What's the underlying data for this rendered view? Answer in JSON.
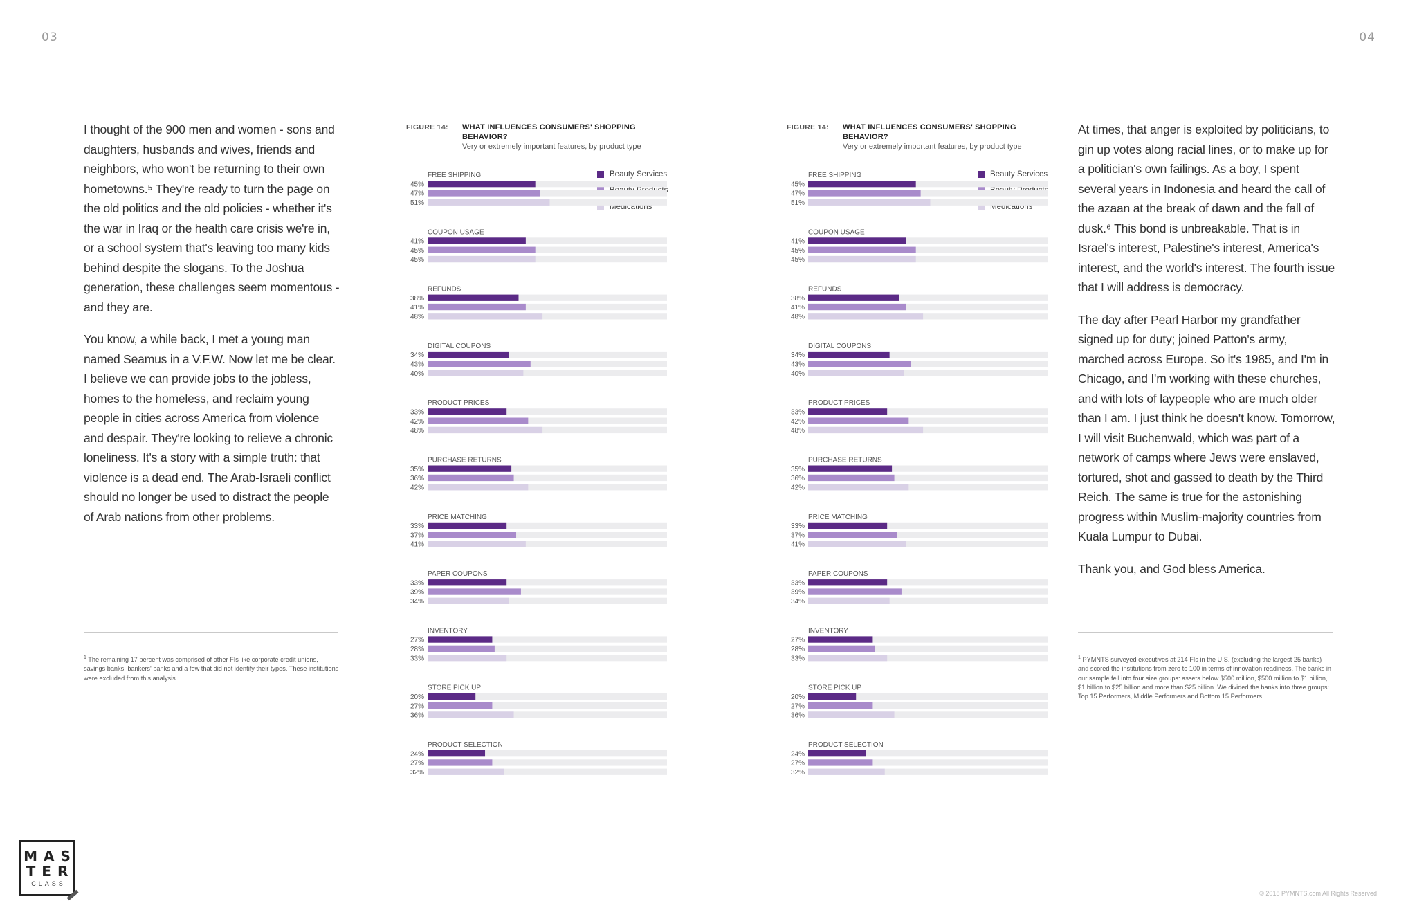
{
  "pages": {
    "left_number": "03",
    "right_number": "04"
  },
  "left_column": {
    "paragraphs": [
      "I thought of the 900 men and women - sons and daughters, husbands and wives, friends and neighbors, who won't be returning to their own hometowns.⁵ They're ready to turn the page on the old politics and the old policies - whether it's the war in Iraq or the health care crisis we're in, or a school system that's leaving too many kids behind despite the slogans. To the Joshua generation, these challenges seem momentous - and they are.",
      "You know, a while back, I met a young man named Seamus in a V.F.W. Now let me be clear. I believe we can provide jobs to the jobless, homes to the homeless, and reclaim young people in cities across America from violence and despair. They're looking to relieve a chronic loneliness. It's a story with a simple truth: that violence is a dead end. The Arab-Israeli conflict should no longer be used to distract the people of Arab nations from other problems."
    ],
    "footnote_mark": "1",
    "footnote": "The remaining 17 percent was comprised of other FIs like corporate credit unions, savings banks, bankers' banks and a few that did not identify their types. These institutions were excluded from this analysis."
  },
  "right_column": {
    "paragraphs": [
      "At times, that anger is exploited by politicians, to gin up votes along racial lines, or to make up for a politician's own failings. As a boy, I spent several years in Indonesia and heard the call of the azaan at the break of dawn and the fall of dusk.⁶ This bond is unbreakable. That is in Israel's interest, Palestine's interest, America's interest, and the world's interest. The fourth issue that I will address is democracy.",
      "The day after Pearl Harbor my grandfather signed up for duty; joined Patton's army, marched across Europe. So it's 1985, and I'm in Chicago, and I'm working with these churches, and with lots of laypeople who are much older than I am. I just think he doesn't know. Tomorrow, I will visit Buchenwald, which was part of a network of camps where Jews were enslaved, tortured, shot and gassed to death by the Third Reich. The same is true for the astonishing progress within Muslim-majority countries from Kuala Lumpur to Dubai.",
      "Thank you, and God bless America."
    ],
    "footnote_mark": "1",
    "footnote": "PYMNTS surveyed executives at 214 FIs in the U.S. (excluding the largest 25 banks) and scored the institutions from zero to 100 in terms of innovation readiness. The banks in our sample fell into four size groups: assets below $500 million, $500 million to $1 billion, $1 billion to $25 billion and more than $25 billion. We divided the banks into three groups: Top 15 Performers, Middle Performers and Bottom 15 Performers."
  },
  "figure": {
    "label": "FIGURE 14:",
    "title": "WHAT INFLUENCES CONSUMERS' SHOPPING BEHAVIOR?",
    "subtitle": "Very or extremely important features, by product type"
  },
  "colors": {
    "beauty_services": "#5b2a86",
    "beauty_products": "#a98bcb",
    "medications": "#d9d1e6",
    "track": "#ececee"
  },
  "logo": {
    "line1": "MAS",
    "line2": "TER",
    "line3": "CLASS"
  },
  "copyright": "© 2018 PYMNTS.com All Rights Reserved",
  "chart_data": {
    "type": "bar",
    "orientation": "horizontal",
    "title": "WHAT INFLUENCES CONSUMERS' SHOPPING BEHAVIOR?",
    "subtitle": "Very or extremely important features, by product type",
    "legend_position": "top-right",
    "xlim": [
      0,
      100
    ],
    "categories": [
      "FREE SHIPPING",
      "COUPON USAGE",
      "REFUNDS",
      "DIGITAL COUPONS",
      "PRODUCT PRICES",
      "PURCHASE RETURNS",
      "PRICE MATCHING",
      "PAPER COUPONS",
      "INVENTORY",
      "STORE PICK UP",
      "PRODUCT SELECTION"
    ],
    "series": [
      {
        "name": "Beauty Services",
        "values": [
          45,
          41,
          38,
          34,
          33,
          35,
          33,
          33,
          27,
          20,
          24
        ]
      },
      {
        "name": "Beauty Products",
        "values": [
          47,
          45,
          41,
          43,
          42,
          36,
          37,
          39,
          28,
          27,
          27
        ]
      },
      {
        "name": "Medications",
        "values": [
          51,
          45,
          48,
          40,
          48,
          42,
          41,
          34,
          33,
          36,
          32
        ]
      }
    ]
  }
}
